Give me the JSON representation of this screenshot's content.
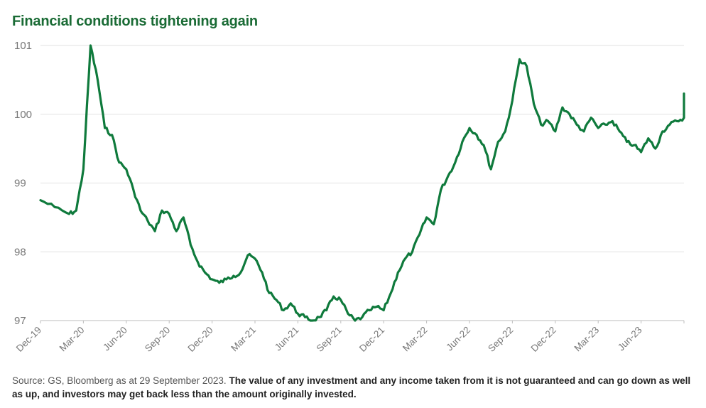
{
  "title": "Financial conditions tightening again",
  "footer": {
    "source": "Source: GS, Bloomberg as at 29 September 2023.",
    "disclaimer": "The value of any investment and any income taken from it is not guaranteed and can go down as well as up, and investors may get back less than the amount originally invested."
  },
  "colors": {
    "line": "#0f7a3c",
    "title": "#1a6b35"
  },
  "chart_data": {
    "type": "line",
    "title": "Financial conditions tightening again",
    "xlabel": "",
    "ylabel": "",
    "ylim": [
      97,
      101
    ],
    "yticks": [
      97,
      98,
      99,
      100,
      101
    ],
    "xlim": [
      "2019-12",
      "2023-09"
    ],
    "x_tick_labels": [
      "Dec-19",
      "Mar-20",
      "Jun-20",
      "Sep-20",
      "Dec-20",
      "Mar-21",
      "Jun-21",
      "Sep-21",
      "Dec-21",
      "Mar-22",
      "Jun-22",
      "Sep-22",
      "Dec-22",
      "Mar-23",
      "Jun-23"
    ],
    "grid": "horizontal",
    "legend": "none",
    "series": [
      {
        "x": [
          "2019-12",
          "2020-01",
          "2020-02",
          "2020-02",
          "2020-03",
          "2020-03",
          "2020-04",
          "2020-04",
          "2020-05",
          "2020-05",
          "2020-06",
          "2020-06",
          "2020-07",
          "2020-07",
          "2020-08",
          "2020-08",
          "2020-09",
          "2020-09",
          "2020-10",
          "2020-10",
          "2020-11",
          "2020-11",
          "2020-12",
          "2020-12",
          "2021-01",
          "2021-01",
          "2021-02",
          "2021-02",
          "2021-03",
          "2021-03",
          "2021-04",
          "2021-04",
          "2021-05",
          "2021-05",
          "2021-06",
          "2021-06",
          "2021-07",
          "2021-07",
          "2021-08",
          "2021-08",
          "2021-09",
          "2021-09",
          "2021-10",
          "2021-10",
          "2021-11",
          "2021-11",
          "2021-12",
          "2021-12",
          "2022-01",
          "2022-01",
          "2022-02",
          "2022-02",
          "2022-03",
          "2022-03",
          "2022-04",
          "2022-04",
          "2022-05",
          "2022-05",
          "2022-06",
          "2022-06",
          "2022-07",
          "2022-07",
          "2022-08",
          "2022-08",
          "2022-09",
          "2022-09",
          "2022-10",
          "2022-10",
          "2022-11",
          "2022-11",
          "2022-12",
          "2022-12",
          "2023-01",
          "2023-01",
          "2023-02",
          "2023-02",
          "2023-03",
          "2023-03",
          "2023-04",
          "2023-04",
          "2023-05",
          "2023-05",
          "2023-06",
          "2023-06",
          "2023-07",
          "2023-07",
          "2023-08",
          "2023-08",
          "2023-09",
          "2023-09"
        ],
        "values": [
          98.75,
          98.65,
          98.55,
          98.6,
          99.2,
          101.0,
          100.5,
          99.8,
          99.7,
          99.3,
          99.2,
          98.9,
          98.6,
          98.45,
          98.3,
          98.6,
          98.55,
          98.3,
          98.5,
          98.1,
          97.85,
          97.7,
          97.6,
          97.55,
          97.6,
          97.65,
          97.7,
          97.95,
          97.9,
          97.7,
          97.4,
          97.3,
          97.15,
          97.25,
          97.1,
          97.05,
          97.0,
          97.05,
          97.15,
          97.35,
          97.3,
          97.1,
          97.0,
          97.05,
          97.15,
          97.2,
          97.15,
          97.4,
          97.7,
          97.9,
          98.0,
          98.25,
          98.5,
          98.4,
          98.9,
          99.1,
          99.3,
          99.6,
          99.8,
          99.7,
          99.55,
          99.2,
          99.6,
          99.75,
          100.2,
          100.8,
          100.7,
          100.15,
          99.85,
          99.9,
          99.75,
          100.1,
          100.0,
          99.85,
          99.75,
          99.95,
          99.8,
          99.85,
          99.9,
          99.75,
          99.6,
          99.55,
          99.45,
          99.65,
          99.5,
          99.75,
          99.85,
          99.9,
          99.95,
          100.3
        ]
      }
    ]
  }
}
